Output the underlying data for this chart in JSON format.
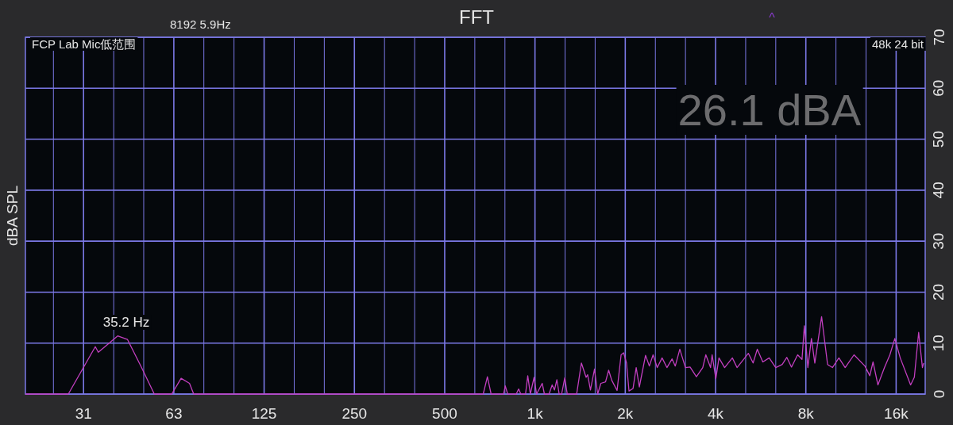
{
  "chart_data": {
    "type": "line",
    "title": "FFT",
    "ylabel": "dBA SPL",
    "log": "x",
    "grid": true,
    "annotations": [
      "8192  5.9Hz",
      "^",
      "FCP Lab Mic低范围",
      "48k 24 bit",
      "26.1 dBA",
      "35.2 Hz"
    ],
    "xlim": [
      20,
      20000
    ],
    "ylim": [
      0,
      70
    ],
    "xticks": [
      {
        "value": 24.8,
        "label": null
      },
      {
        "value": 31.25,
        "label": "31"
      },
      {
        "value": 39.4,
        "label": null
      },
      {
        "value": 49.6,
        "label": null
      },
      {
        "value": 62.5,
        "label": "63"
      },
      {
        "value": 78.7,
        "label": null
      },
      {
        "value": 99.2,
        "label": null
      },
      125,
      {
        "value": 157.5,
        "label": null
      },
      {
        "value": 198.4,
        "label": null
      },
      250,
      {
        "value": 315,
        "label": null
      },
      {
        "value": 397,
        "label": null
      },
      500,
      {
        "value": 630,
        "label": null
      },
      {
        "value": 794,
        "label": null
      },
      {
        "value": 1000,
        "label": "1k"
      },
      {
        "value": 1260,
        "label": null
      },
      {
        "value": 1587,
        "label": null
      },
      {
        "value": 2000,
        "label": "2k"
      },
      {
        "value": 2520,
        "label": null
      },
      {
        "value": 3175,
        "label": null
      },
      {
        "value": 4000,
        "label": "4k"
      },
      {
        "value": 5040,
        "label": null
      },
      {
        "value": 6350,
        "label": null
      },
      {
        "value": 8000,
        "label": "8k"
      },
      {
        "value": 10080,
        "label": null
      },
      {
        "value": 12700,
        "label": null
      },
      {
        "value": 16000,
        "label": "16k"
      }
    ],
    "yticks": [
      0,
      10,
      20,
      30,
      40,
      50,
      60,
      70
    ],
    "series": [
      {
        "color": "#c23fc0",
        "x": [
          20,
          27.8,
          34.2,
          35.0,
          40.6,
          43.8,
          48.6,
          53.8,
          61.5,
          66.1,
          70.5,
          72.8,
          672,
          694,
          714,
          786,
          796,
          811,
          866,
          882,
          897,
          930,
          946,
          965,
          993,
          1012,
          1057,
          1075,
          1114,
          1141,
          1161,
          1183,
          1204,
          1227,
          1257,
          1281,
          1377,
          1428,
          1480,
          1498,
          1531,
          1579,
          1618,
          1658,
          1719,
          1760,
          1803,
          1878,
          1937,
          1975,
          2019,
          2058,
          2123,
          2175,
          2228,
          2337,
          2406,
          2476,
          2556,
          2653,
          2754,
          2865,
          2936,
          3040,
          3174,
          3289,
          3453,
          3625,
          3712,
          3849,
          3896,
          4008,
          4106,
          4288,
          4550,
          4717,
          4958,
          5143,
          5337,
          5511,
          5749,
          6038,
          6348,
          6673,
          6913,
          7165,
          7511,
          7767,
          7909,
          8124,
          8350,
          8570,
          9028,
          9453,
          9812,
          10310,
          10820,
          11580,
          12590,
          13070,
          13400,
          13910,
          14630,
          15250,
          15840,
          16510,
          17880,
          18400,
          19020,
          19580,
          19760
        ],
        "values": [
          0,
          0,
          9.3,
          8.2,
          11.4,
          10.7,
          5.4,
          0,
          0,
          3.1,
          2.1,
          0,
          0,
          3.4,
          0,
          0,
          1.6,
          0,
          0,
          1.0,
          0,
          0,
          3.6,
          0,
          3.3,
          0,
          2.1,
          0,
          0,
          1.8,
          0.8,
          2.8,
          0,
          0,
          3.2,
          0,
          0,
          6.1,
          3.3,
          3.8,
          0.8,
          4.9,
          0,
          2.1,
          2.4,
          4.7,
          2.7,
          0.7,
          7.7,
          8.1,
          6.1,
          0.6,
          1.1,
          5.2,
          1.4,
          7.6,
          5.5,
          7.7,
          5.2,
          7.1,
          5.2,
          6.9,
          5.5,
          8.8,
          5.2,
          5.3,
          3.4,
          5.2,
          7.7,
          5.2,
          7.7,
          3.0,
          7.1,
          5.2,
          7.1,
          5.2,
          6.8,
          8.0,
          6.1,
          8.8,
          6.3,
          7.1,
          5.2,
          5.8,
          7.2,
          5.3,
          7.7,
          6.8,
          13.4,
          5.2,
          10.9,
          6.1,
          15.2,
          5.8,
          5.2,
          7.1,
          5.2,
          7.7,
          5.5,
          3.6,
          6.3,
          1.8,
          5.2,
          7.7,
          10.9,
          7.1,
          1.8,
          3.3,
          12.1,
          5.2,
          6.1
        ]
      }
    ]
  }
}
